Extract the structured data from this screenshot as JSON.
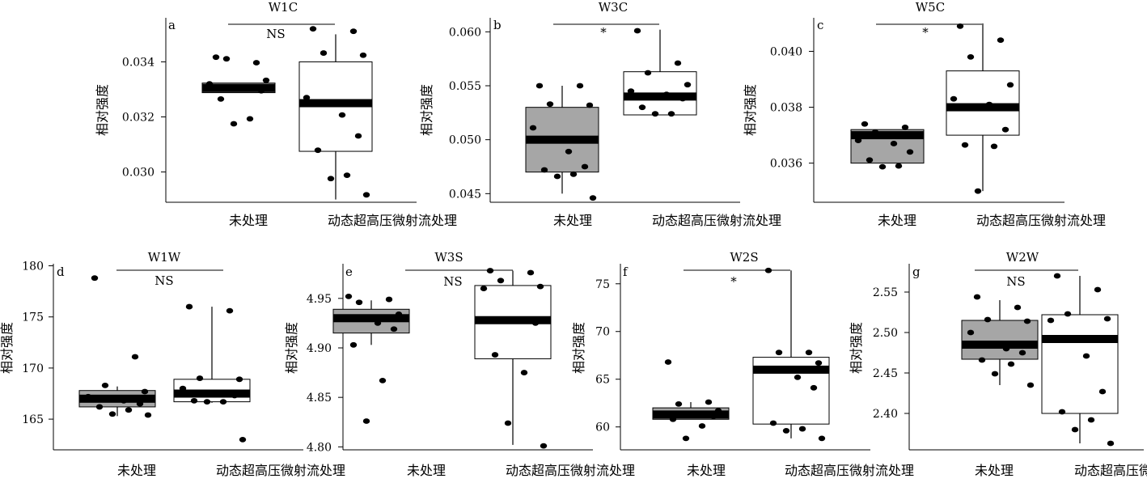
{
  "chart_data": [
    {
      "type": "box",
      "letter": "a",
      "title": "W1C",
      "ylabel": "相对强度",
      "categories": [
        "未处理",
        "动态超高压微射流处理"
      ],
      "ylim": [
        0.0289,
        0.0356
      ],
      "yticks": [
        0.03,
        0.032,
        0.034
      ],
      "yticklabels": [
        "0.030",
        "0.032",
        "0.034"
      ],
      "significance": "NS",
      "boxes": [
        {
          "fill": "#a6a6a6",
          "q1": 0.03288,
          "median": 0.03305,
          "q3": 0.03323,
          "whisker_low": 0.03288,
          "whisker_high": 0.03323,
          "points": [
            0.03417,
            0.03397,
            0.03411,
            0.03333,
            0.0332,
            0.03304,
            0.03295,
            0.03265,
            0.03193,
            0.03175
          ]
        },
        {
          "fill": "#ffffff",
          "q1": 0.03075,
          "median": 0.0325,
          "q3": 0.034,
          "whisker_low": 0.029,
          "whisker_high": 0.035,
          "points": [
            0.0352,
            0.03511,
            0.03432,
            0.03424,
            0.0327,
            0.03207,
            0.03131,
            0.03079,
            0.02988,
            0.02976,
            0.02917
          ]
        }
      ]
    },
    {
      "type": "box",
      "letter": "b",
      "title": "W3C",
      "ylabel": "相对强度",
      "categories": [
        "未处理",
        "动态超高压微射流处理"
      ],
      "ylim": [
        0.0442,
        0.0613
      ],
      "yticks": [
        0.045,
        0.05,
        0.055,
        0.06
      ],
      "yticklabels": [
        "0.045",
        "0.050",
        "0.055",
        "0.060"
      ],
      "significance": "*",
      "boxes": [
        {
          "fill": "#a6a6a6",
          "q1": 0.047,
          "median": 0.05,
          "q3": 0.053,
          "whisker_low": 0.045,
          "whisker_high": 0.055,
          "points": [
            0.055,
            0.055,
            0.0533,
            0.0532,
            0.0511,
            0.0489,
            0.0475,
            0.0472,
            0.0468,
            0.0466,
            0.0446
          ]
        },
        {
          "fill": "#ffffff",
          "q1": 0.0523,
          "median": 0.054,
          "q3": 0.0563,
          "whisker_low": 0.0523,
          "whisker_high": 0.0602,
          "points": [
            0.0601,
            0.0571,
            0.0562,
            0.0551,
            0.0545,
            0.0542,
            0.0538,
            0.053,
            0.0524,
            0.0524
          ]
        }
      ]
    },
    {
      "type": "box",
      "letter": "c",
      "title": "W5C",
      "ylabel": "相对强度",
      "categories": [
        "未处理",
        "动态超高压微射流处理"
      ],
      "ylim": [
        0.0346,
        0.0412
      ],
      "yticks": [
        0.036,
        0.038,
        0.04
      ],
      "yticklabels": [
        "0.036",
        "0.038",
        "0.040"
      ],
      "significance": "*",
      "boxes": [
        {
          "fill": "#a6a6a6",
          "q1": 0.036,
          "median": 0.037,
          "q3": 0.0372,
          "whisker_low": 0.036,
          "whisker_high": 0.0372,
          "points": [
            0.0374,
            0.03728,
            0.03711,
            0.037,
            0.03681,
            0.0367,
            0.0364,
            0.03611,
            0.0359,
            0.03587
          ]
        },
        {
          "fill": "#ffffff",
          "q1": 0.037,
          "median": 0.038,
          "q3": 0.0393,
          "whisker_low": 0.035,
          "whisker_high": 0.041,
          "points": [
            0.0409,
            0.0404,
            0.0398,
            0.0388,
            0.0383,
            0.0381,
            0.0372,
            0.03665,
            0.0366,
            0.035
          ]
        }
      ]
    },
    {
      "type": "box",
      "letter": "d",
      "title": "W1W",
      "ylabel": "相对强度",
      "categories": [
        "未处理",
        "动态超高压微射流处理"
      ],
      "ylim": [
        162.0,
        180.2
      ],
      "yticks": [
        165,
        170,
        175,
        180
      ],
      "yticklabels": [
        "165",
        "170",
        "175",
        "180"
      ],
      "significance": "NS",
      "boxes": [
        {
          "fill": "#a6a6a6",
          "q1": 166.2,
          "median": 167.0,
          "q3": 167.8,
          "whisker_low": 165.3,
          "whisker_high": 168.2,
          "points": [
            178.8,
            171.1,
            168.3,
            167.7,
            167.2,
            166.8,
            166.5,
            166.2,
            165.9,
            165.5,
            165.4
          ]
        },
        {
          "fill": "#ffffff",
          "q1": 166.7,
          "median": 167.5,
          "q3": 168.9,
          "whisker_low": 166.6,
          "whisker_high": 176.0,
          "points": [
            176.0,
            175.6,
            169.0,
            168.9,
            168.0,
            167.6,
            167.3,
            166.8,
            166.7,
            166.7,
            163.0
          ]
        }
      ]
    },
    {
      "type": "box",
      "letter": "e",
      "title": "W3S",
      "ylabel": "相对强度",
      "categories": [
        "未处理",
        "动态超高压微射流处理"
      ],
      "ylim": [
        4.797,
        4.985
      ],
      "yticks": [
        4.8,
        4.85,
        4.9,
        4.95
      ],
      "yticklabels": [
        "4.80",
        "4.85",
        "4.90",
        "4.95"
      ],
      "significance": "NS",
      "boxes": [
        {
          "fill": "#a6a6a6",
          "q1": 4.915,
          "median": 4.93,
          "q3": 4.939,
          "whisker_low": 4.903,
          "whisker_high": 4.948,
          "points": [
            4.952,
            4.949,
            4.946,
            4.934,
            4.93,
            4.925,
            4.919,
            4.903,
            4.867,
            4.826
          ]
        },
        {
          "fill": "#ffffff",
          "q1": 4.889,
          "median": 4.928,
          "q3": 4.963,
          "whisker_low": 4.802,
          "whisker_high": 4.978,
          "points": [
            4.978,
            4.976,
            4.968,
            4.962,
            4.96,
            4.928,
            4.925,
            4.893,
            4.875,
            4.824,
            4.801
          ]
        }
      ]
    },
    {
      "type": "box",
      "letter": "f",
      "title": "W2S",
      "ylabel": "相对强度",
      "categories": [
        "未处理",
        "动态超高压微射流处理"
      ],
      "ylim": [
        57.6,
        77.1
      ],
      "yticks": [
        60,
        65,
        70,
        75
      ],
      "yticklabels": [
        "60",
        "65",
        "70",
        "75"
      ],
      "significance": "*",
      "boxes": [
        {
          "fill": "#a6a6a6",
          "q1": 60.8,
          "median": 61.3,
          "q3": 62.0,
          "whisker_low": 60.8,
          "whisker_high": 62.6,
          "points": [
            66.8,
            62.6,
            62.4,
            61.7,
            61.4,
            61.2,
            61.1,
            60.8,
            60.1,
            58.8
          ]
        },
        {
          "fill": "#ffffff",
          "q1": 60.3,
          "median": 66.0,
          "q3": 67.3,
          "whisker_low": 58.8,
          "whisker_high": 76.4,
          "points": [
            76.4,
            67.8,
            67.8,
            66.7,
            65.9,
            65.2,
            64.1,
            60.4,
            59.8,
            59.6,
            58.8
          ]
        }
      ]
    },
    {
      "type": "box",
      "letter": "g",
      "title": "W2W",
      "ylabel": "相对强度",
      "categories": [
        "未处理",
        "动态超高压微射流处理"
      ],
      "ylim": [
        2.355,
        2.585
      ],
      "yticks": [
        2.4,
        2.45,
        2.5,
        2.55
      ],
      "yticklabels": [
        "2.40",
        "2.45",
        "2.50",
        "2.55"
      ],
      "significance": "NS",
      "boxes": [
        {
          "fill": "#a6a6a6",
          "q1": 2.467,
          "median": 2.485,
          "q3": 2.515,
          "whisker_low": 2.435,
          "whisker_high": 2.54,
          "points": [
            2.544,
            2.531,
            2.516,
            2.514,
            2.5,
            2.48,
            2.475,
            2.466,
            2.461,
            2.449,
            2.435
          ]
        },
        {
          "fill": "#ffffff",
          "q1": 2.4,
          "median": 2.492,
          "q3": 2.522,
          "whisker_low": 2.363,
          "whisker_high": 2.57,
          "points": [
            2.57,
            2.553,
            2.523,
            2.517,
            2.515,
            2.471,
            2.427,
            2.402,
            2.392,
            2.38,
            2.363
          ]
        }
      ]
    }
  ]
}
